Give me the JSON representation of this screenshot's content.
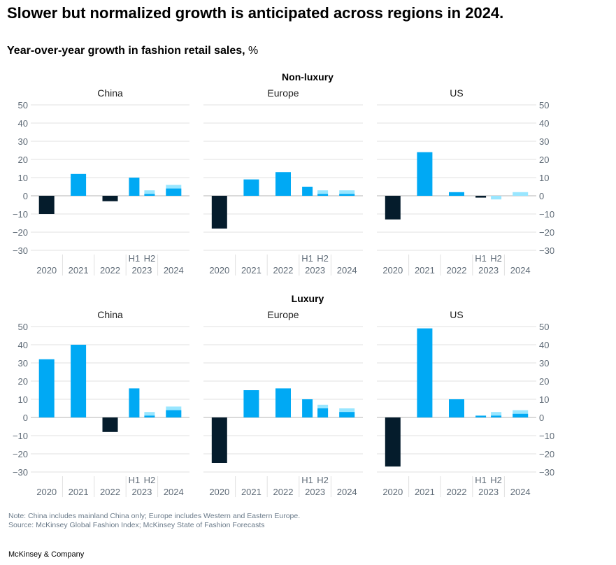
{
  "title": "Slower but normalized growth is anticipated across regions in 2024.",
  "subtitle_bold": "Year-over-year growth in fashion retail sales,",
  "subtitle_unit": "%",
  "note": "Note: China includes mainland China only; Europe includes Western and Eastern Europe.",
  "source": "Source: McKinsey Global Fashion Index; McKinsey State of Fashion Forecasts",
  "footer": "McKinsey & Company",
  "colors": {
    "negative": "#051c2c",
    "positive": "#00a9f4",
    "forecast_h2": "#99e6ff",
    "grid": "#e0e0e0",
    "zero": "#b5b5b5"
  },
  "chart_data": [
    {
      "type": "bar",
      "group": "Non-luxury",
      "ylim": [
        -30,
        50
      ],
      "yticks": [
        "50",
        "40",
        "30",
        "20",
        "10",
        "0",
        "−10",
        "−20",
        "−30"
      ],
      "categories": [
        "2020",
        "2021",
        "2022",
        "2023",
        "2024"
      ],
      "half_labels": [
        "H1",
        "H2"
      ],
      "panels": [
        {
          "region": "China",
          "values": {
            "2020": -10,
            "2021": 12,
            "2022": -3,
            "2023": {
              "H1": 10,
              "H2": 1,
              "H2_forecast": 3
            },
            "2024": {
              "value": 4,
              "forecast": 6
            }
          }
        },
        {
          "region": "Europe",
          "values": {
            "2020": -18,
            "2021": 9,
            "2022": 13,
            "2023": {
              "H1": 5,
              "H2": 1,
              "H2_forecast": 3
            },
            "2024": {
              "value": 1,
              "forecast": 3
            }
          }
        },
        {
          "region": "US",
          "values": {
            "2020": -13,
            "2021": 24,
            "2022": 2,
            "2023": {
              "H1": -1,
              "H2": 0,
              "H2_forecast": -2
            },
            "2024": {
              "value": 0,
              "forecast": 2
            }
          }
        }
      ]
    },
    {
      "type": "bar",
      "group": "Luxury",
      "ylim": [
        -30,
        50
      ],
      "yticks": [
        "50",
        "40",
        "30",
        "20",
        "10",
        "0",
        "−10",
        "−20",
        "−30"
      ],
      "categories": [
        "2020",
        "2021",
        "2022",
        "2023",
        "2024"
      ],
      "half_labels": [
        "H1",
        "H2"
      ],
      "panels": [
        {
          "region": "China",
          "values": {
            "2020": 32,
            "2021": 40,
            "2022": -8,
            "2023": {
              "H1": 16,
              "H2": 1,
              "H2_forecast": 3
            },
            "2024": {
              "value": 4,
              "forecast": 6
            }
          }
        },
        {
          "region": "Europe",
          "values": {
            "2020": -25,
            "2021": 15,
            "2022": 16,
            "2023": {
              "H1": 10,
              "H2": 5,
              "H2_forecast": 7
            },
            "2024": {
              "value": 3,
              "forecast": 5
            }
          }
        },
        {
          "region": "US",
          "values": {
            "2020": -27,
            "2021": 49,
            "2022": 10,
            "2023": {
              "H1": 1,
              "H2": 1,
              "H2_forecast": 3
            },
            "2024": {
              "value": 2,
              "forecast": 4
            }
          }
        }
      ]
    }
  ]
}
